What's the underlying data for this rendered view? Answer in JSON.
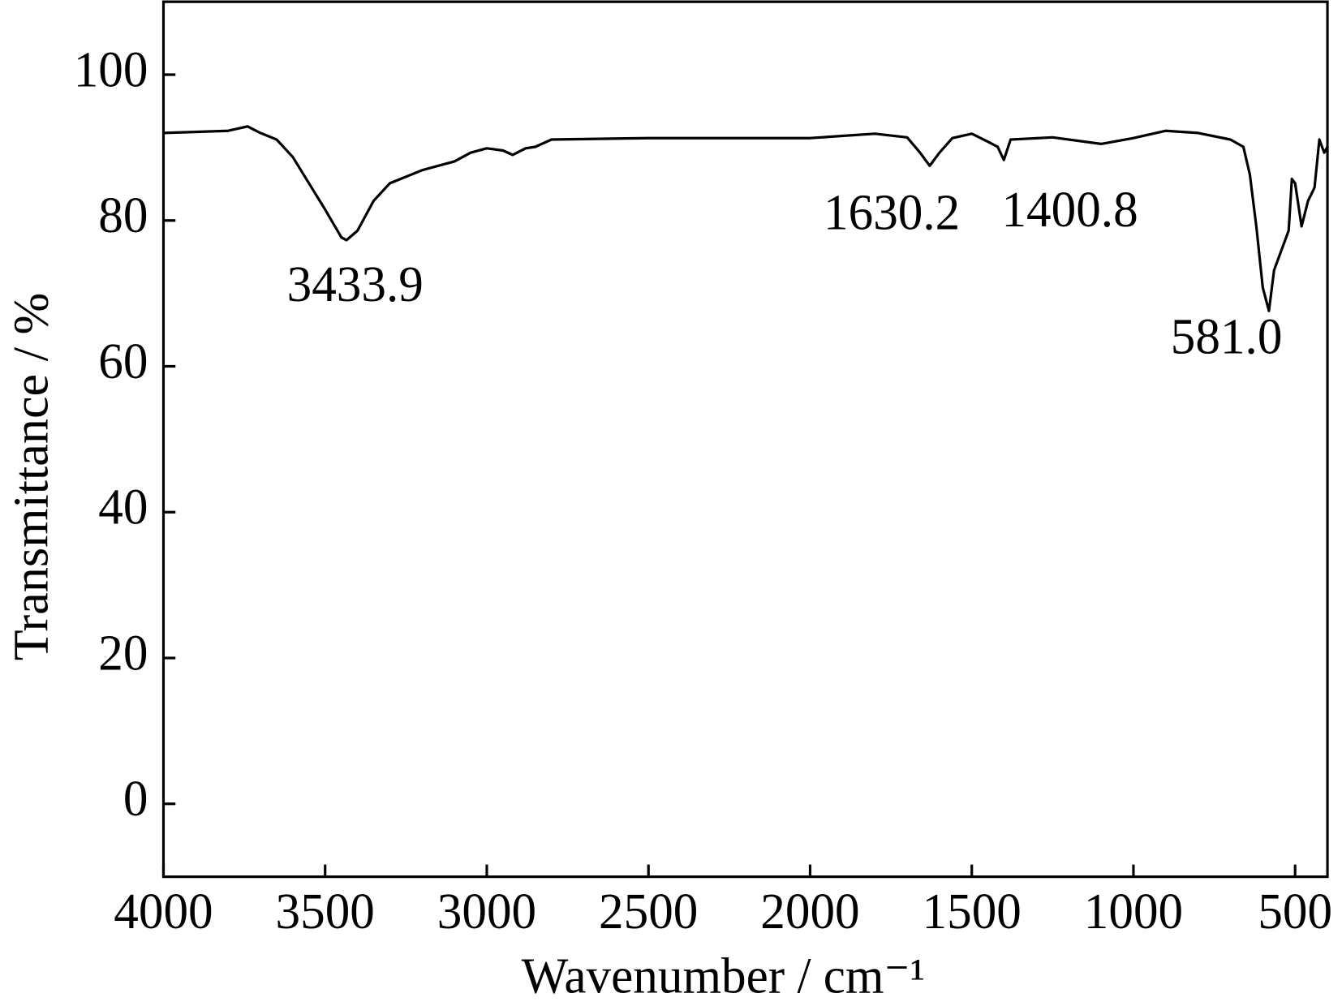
{
  "chart_data": {
    "type": "line",
    "y_label": "Transmittance / %",
    "x_label": "Wavenumber / cm⁻¹",
    "color": "#000000",
    "x": [
      4000,
      3800,
      3740,
      3700,
      3650,
      3600,
      3550,
      3500,
      3450,
      3433.9,
      3400,
      3350,
      3300,
      3250,
      3200,
      3150,
      3100,
      3050,
      3000,
      2950,
      2920,
      2880,
      2850,
      2800,
      2500,
      2000,
      1800,
      1700,
      1660,
      1630.2,
      1600,
      1560,
      1500,
      1450,
      1420,
      1400.8,
      1380,
      1250,
      1100,
      1000,
      900,
      800,
      700,
      660,
      640,
      620,
      600,
      581.0,
      565,
      550,
      520,
      510,
      500,
      480,
      460,
      440,
      425,
      410,
      400
    ],
    "values": [
      92.0,
      92.3,
      92.9,
      92.0,
      91.1,
      88.7,
      85.1,
      81.5,
      77.7,
      77.3,
      78.6,
      82.7,
      85.1,
      86.0,
      86.9,
      87.5,
      88.1,
      89.3,
      89.9,
      89.6,
      89.0,
      89.9,
      90.1,
      91.1,
      91.3,
      91.3,
      91.9,
      91.4,
      89.3,
      87.5,
      89.3,
      91.3,
      91.9,
      90.8,
      90.1,
      88.3,
      91.1,
      91.4,
      90.5,
      91.3,
      92.3,
      92.0,
      91.1,
      90.1,
      86.3,
      79.2,
      70.8,
      67.6,
      73.2,
      75.0,
      78.6,
      85.7,
      85.1,
      79.2,
      82.7,
      84.5,
      91.1,
      89.3,
      90.1
    ],
    "annotations": [
      "3433.9",
      "1630.2",
      "1400.8",
      "581.0"
    ],
    "xlim": [
      4000,
      400
    ],
    "xticks": [
      4000,
      3500,
      3000,
      2500,
      2000,
      1500,
      1000,
      500
    ],
    "ylim": [
      -10,
      110
    ],
    "yticks": [
      0,
      20,
      40,
      60,
      80,
      100
    ]
  }
}
